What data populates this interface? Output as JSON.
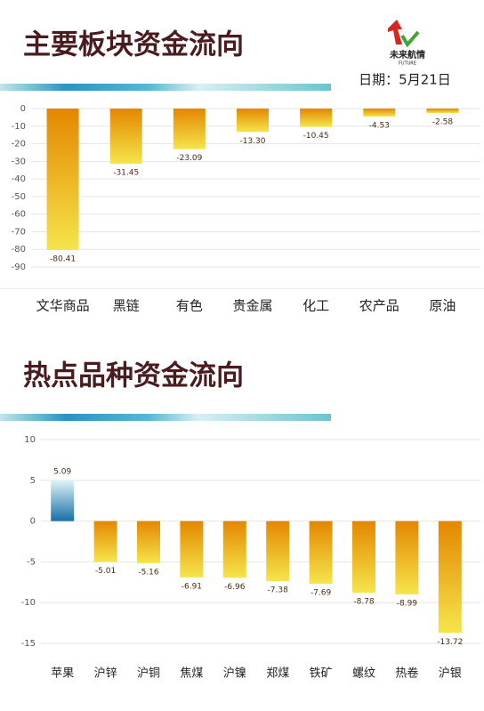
{
  "logo": {
    "name": "未来航情",
    "sub": "FUTURE"
  },
  "date": "日期：5月21日",
  "chart_data": [
    {
      "type": "bar",
      "title": "主要板块资金流向",
      "categories": [
        "文华商品",
        "黑链",
        "有色",
        "贵金属",
        "化工",
        "农产品",
        "原油"
      ],
      "values": [
        -80.41,
        -31.45,
        -23.09,
        -13.3,
        -10.45,
        -4.53,
        -2.58
      ],
      "value_labels": [
        "-80.41",
        "-31.45",
        "-23.09",
        "-13.30",
        "-10.45",
        "-4.53",
        "-2.58"
      ],
      "color": [
        "#e48700",
        "#f5e54c"
      ],
      "ylim": [
        -90,
        0
      ],
      "yticks": [
        0,
        -10,
        -20,
        -30,
        -40,
        -50,
        -60,
        -70,
        -80,
        -90
      ],
      "grid": true
    },
    {
      "type": "bar",
      "title": "热点品种资金流向",
      "categories": [
        "苹果",
        "沪锌",
        "沪铜",
        "焦煤",
        "沪镍",
        "郑煤",
        "铁矿",
        "螺纹",
        "热卷",
        "沪银"
      ],
      "values": [
        5.09,
        -5.01,
        -5.16,
        -6.91,
        -6.96,
        -7.38,
        -7.69,
        -8.78,
        -8.99,
        -13.72
      ],
      "value_labels": [
        "5.09",
        "-5.01",
        "-5.16",
        "-6.91",
        "-6.96",
        "-7.38",
        "-7.69",
        "-8.78",
        "-8.99",
        "-13.72"
      ],
      "color": [
        "#e48700",
        "#f5e54c"
      ],
      "positive_color": [
        "#1670a8",
        "#e4f5f9"
      ],
      "ylim": [
        -15,
        10
      ],
      "yticks": [
        10,
        5,
        0,
        -5,
        -10,
        -15
      ],
      "grid": true
    }
  ]
}
